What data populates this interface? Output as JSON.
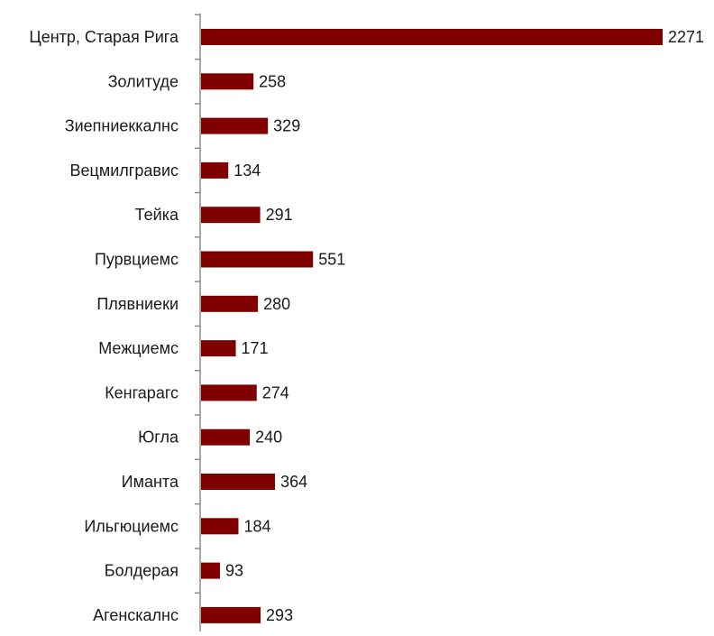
{
  "chart_data": {
    "type": "bar",
    "orientation": "horizontal",
    "title": "",
    "xlabel": "",
    "ylabel": "",
    "bar_color": "#800000",
    "axis_color": "#8c8c8c",
    "grid": false,
    "legend": "none",
    "xlim": [
      0,
      2271
    ],
    "categories": [
      "Центр, Старая Рига",
      "Золитуде",
      "Зиепниеккалнс",
      "Вецмилгравис",
      "Тейка",
      "Пурвциемс",
      "Плявниеки",
      "Межциемс",
      "Кенгарагс",
      "Югла",
      "Иманта",
      "Ильгюциемс",
      "Болдерая",
      "Агенскалнс"
    ],
    "values": [
      2271,
      258,
      329,
      134,
      291,
      551,
      280,
      171,
      274,
      240,
      364,
      184,
      93,
      293
    ]
  }
}
